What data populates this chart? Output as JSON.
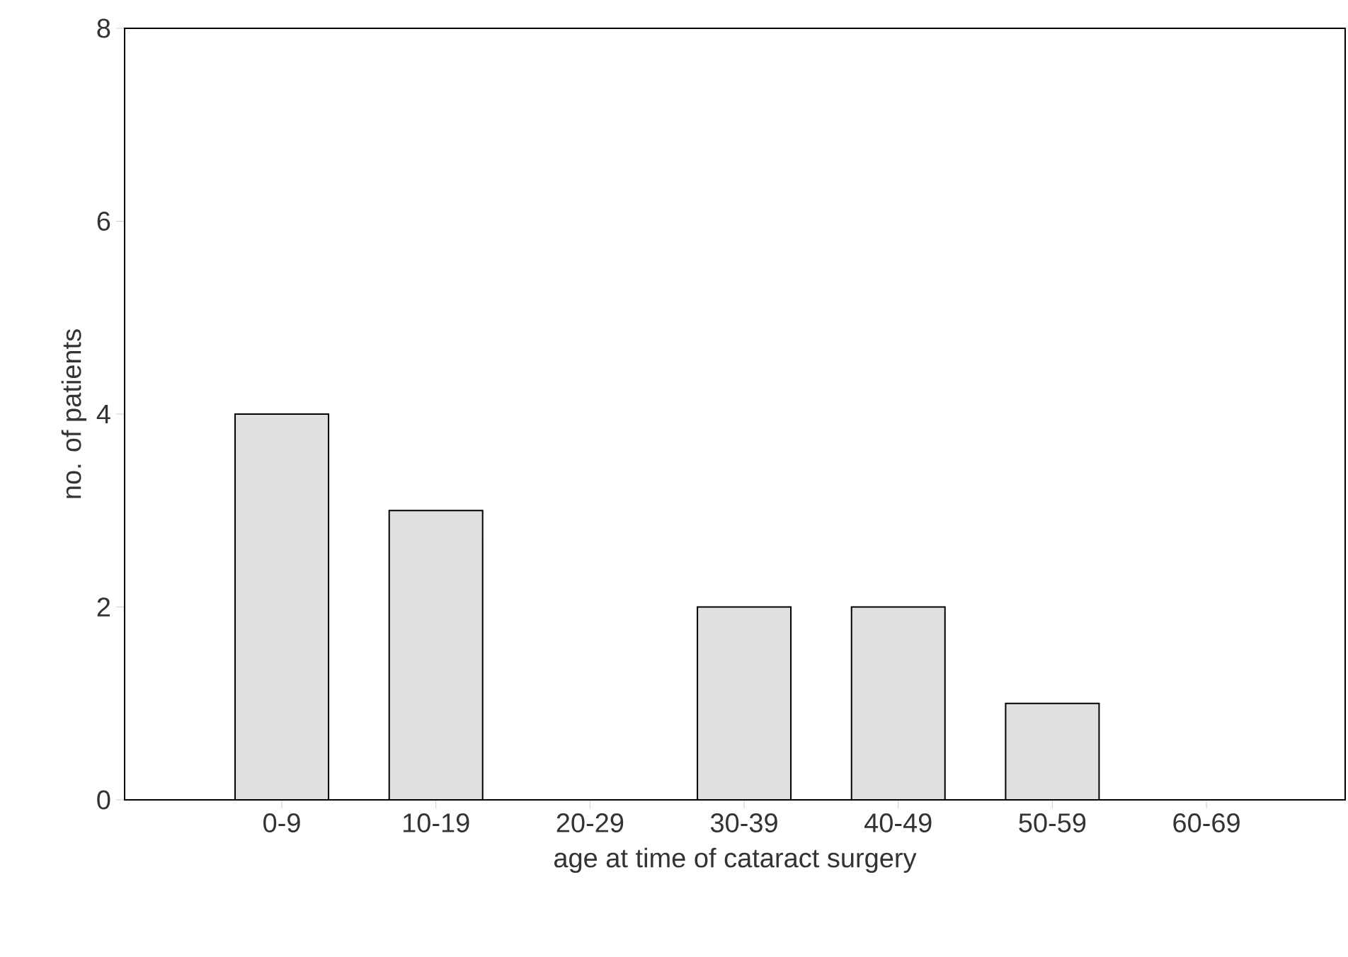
{
  "chart_data": {
    "type": "bar",
    "xlabel": "age at time of cataract surgery",
    "ylabel": "no. of patients",
    "categories": [
      "0-9",
      "10-19",
      "20-29",
      "30-39",
      "40-49",
      "50-59",
      "60-69"
    ],
    "values": [
      4,
      3,
      0,
      2,
      2,
      1,
      0
    ],
    "color": "#e0e0e0",
    "ylim": [
      0,
      8
    ],
    "yticks": [
      0,
      2,
      4,
      6,
      8
    ]
  }
}
